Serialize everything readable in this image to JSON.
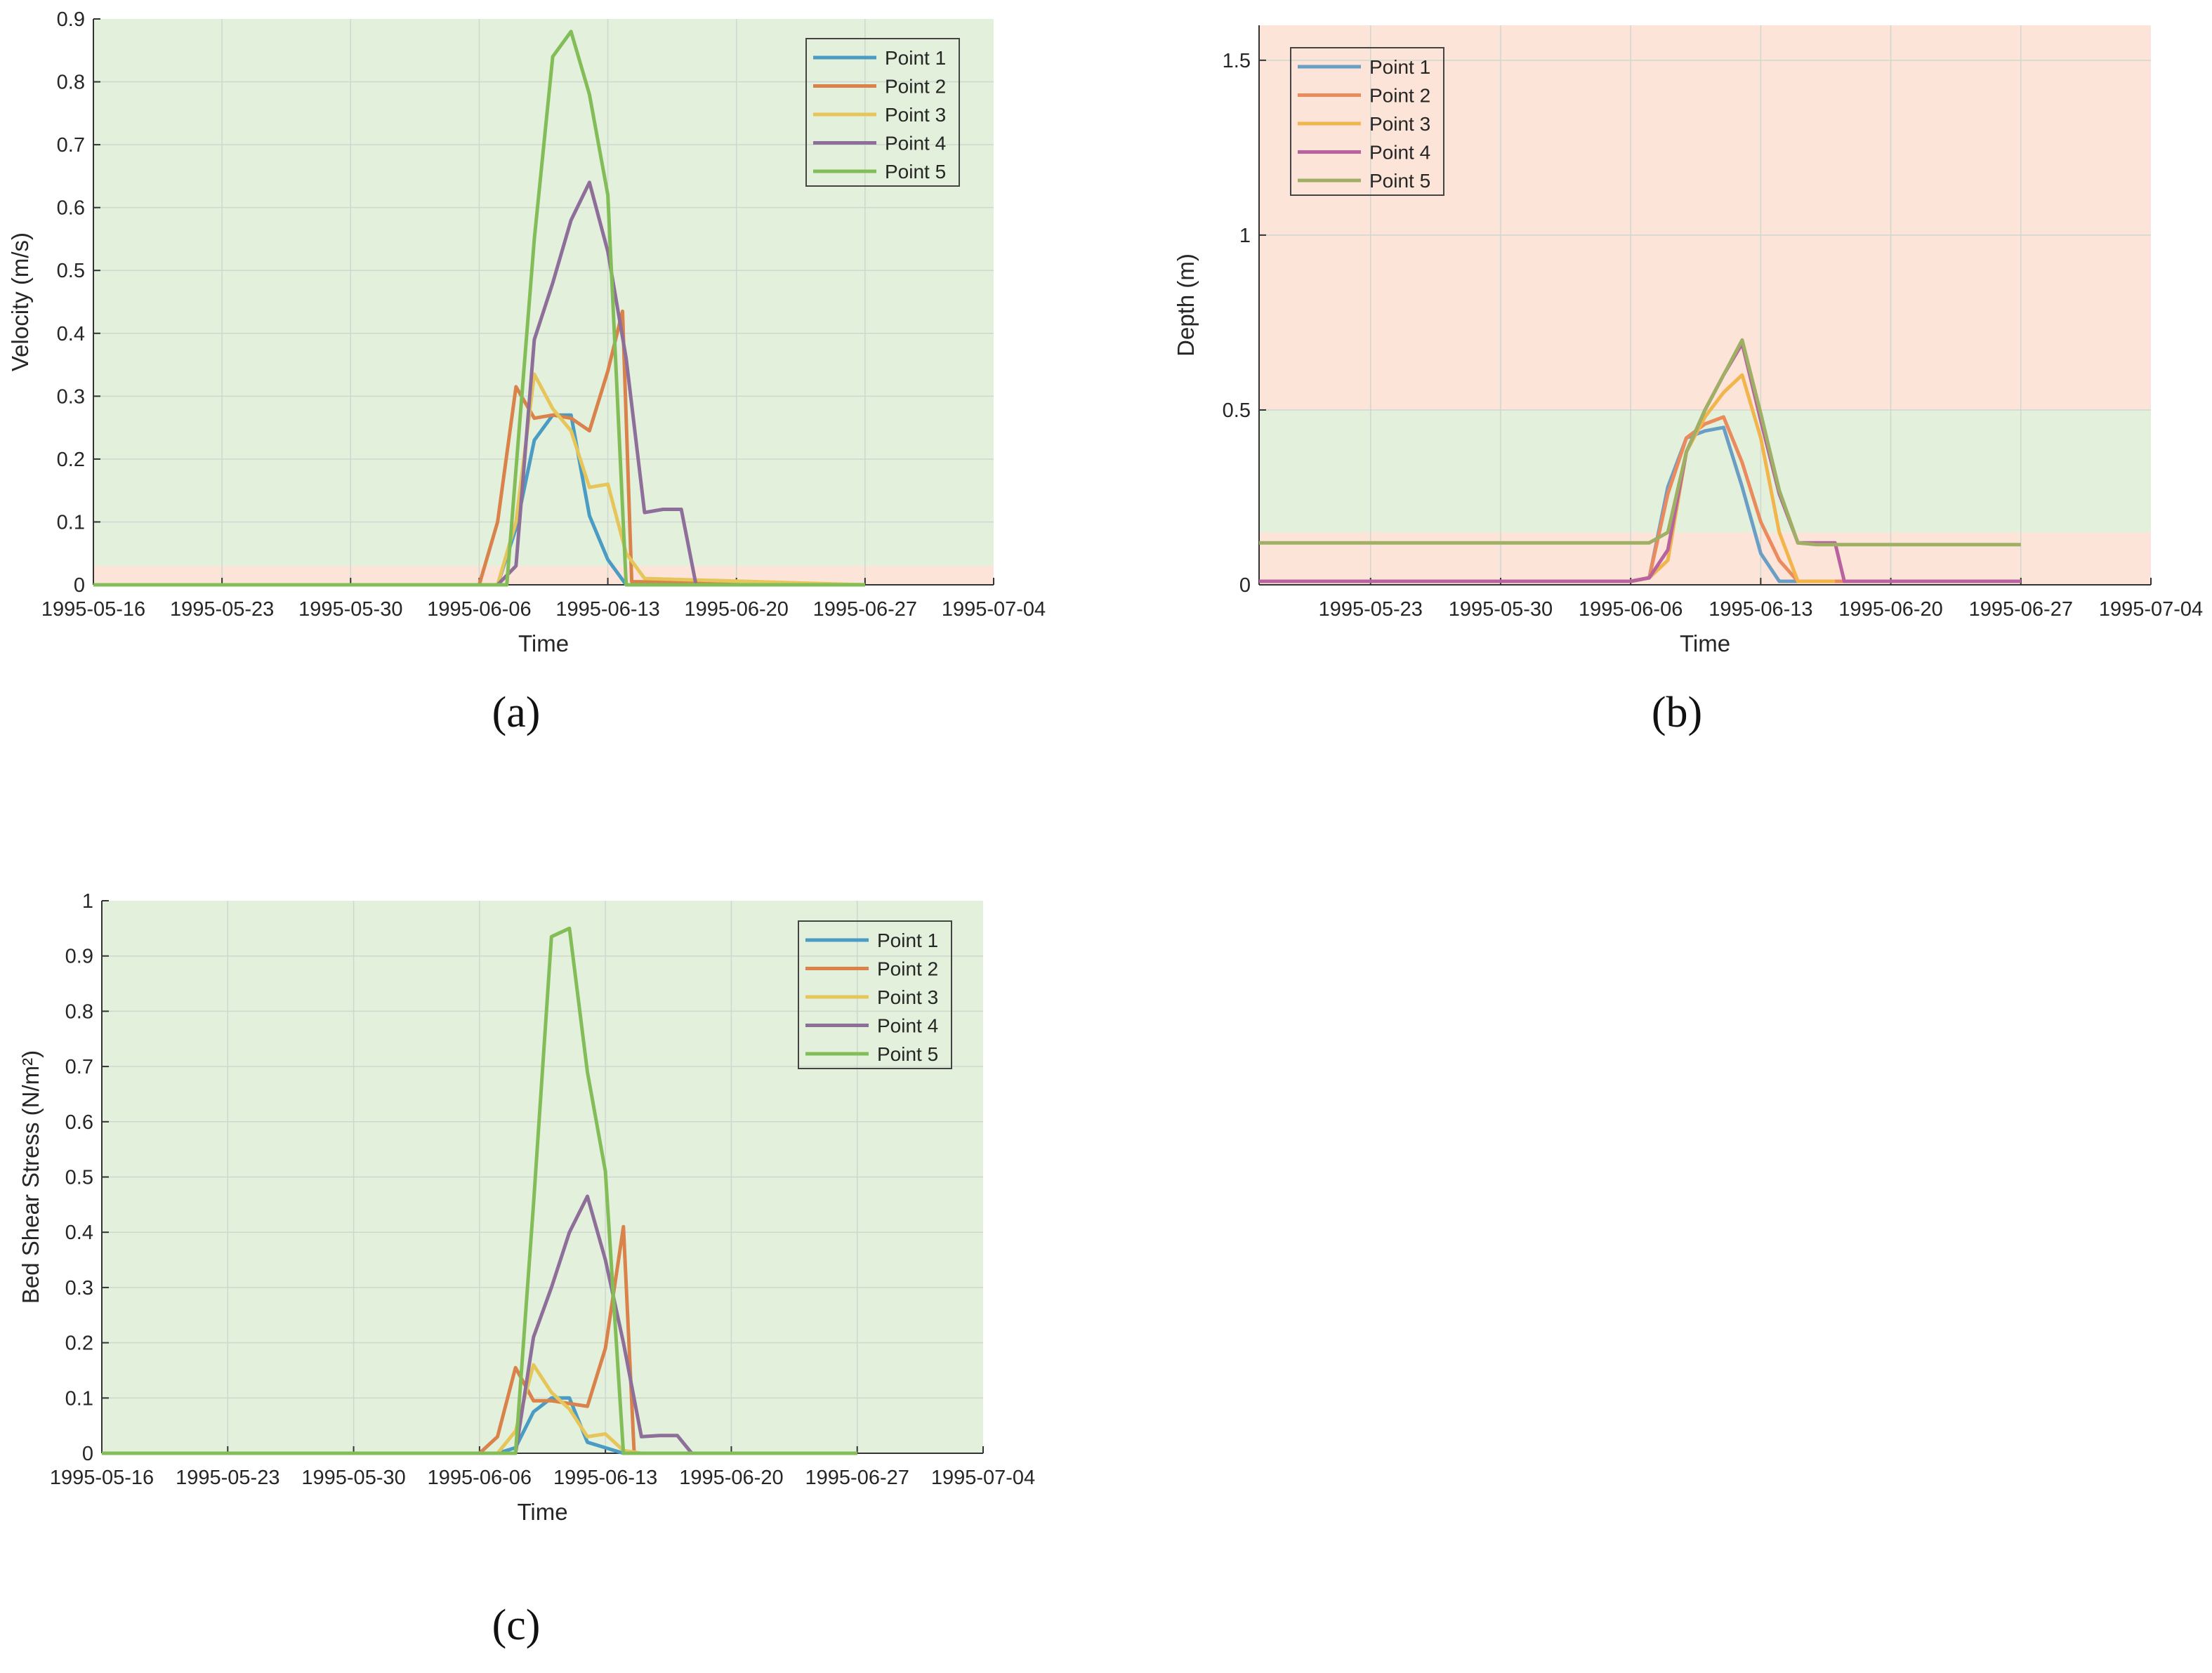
{
  "colors": {
    "safe_zone": "#e3f0dc",
    "risk_zone": "#fce4d8",
    "point1": "#4a9cc4",
    "point2": "#d9824a",
    "point3": "#e6c65a",
    "point4": "#8e6f9a",
    "point5": "#83bd58",
    "point4_b": "#b8639f",
    "point5_b": "#9fb065",
    "point3_b": "#f2b54c",
    "point2_b": "#ea8a5d",
    "point1_b": "#6a9ec4"
  },
  "chart_data": [
    {
      "id": "a",
      "type": "line",
      "caption": "(a)",
      "xlabel": "Time",
      "ylabel": "Velocity (m/s)",
      "x_ticks": [
        "1995-05-16",
        "1995-05-23",
        "1995-05-30",
        "1995-06-06",
        "1995-06-13",
        "1995-06-20",
        "1995-06-27",
        "1995-07-04"
      ],
      "y_ticks": [
        "0",
        "0.1",
        "0.2",
        "0.3",
        "0.4",
        "0.5",
        "0.6",
        "0.7",
        "0.8",
        "0.9"
      ],
      "xlim": [
        "1995-05-16",
        "1995-07-04"
      ],
      "ylim": [
        0,
        0.9
      ],
      "grid": true,
      "legend_position": "top-right",
      "bands": [
        {
          "from": 0,
          "to": 0.03,
          "zone": "risk"
        },
        {
          "from": 0.03,
          "to": 0.9,
          "zone": "safe"
        }
      ],
      "series": [
        {
          "name": "Point 1",
          "points": [
            [
              "1995-05-16",
              0
            ],
            [
              "1995-06-07",
              0
            ],
            [
              "1995-06-08",
              0.09
            ],
            [
              "1995-06-09",
              0.23
            ],
            [
              "1995-06-10",
              0.27
            ],
            [
              "1995-06-11",
              0.27
            ],
            [
              "1995-06-12",
              0.11
            ],
            [
              "1995-06-13",
              0.04
            ],
            [
              "1995-06-14",
              0
            ],
            [
              "1995-06-27",
              0
            ]
          ]
        },
        {
          "name": "Point 2",
          "points": [
            [
              "1995-05-16",
              0
            ],
            [
              "1995-06-06",
              0
            ],
            [
              "1995-06-07",
              0.1
            ],
            [
              "1995-06-08",
              0.315
            ],
            [
              "1995-06-09",
              0.265
            ],
            [
              "1995-06-10",
              0.27
            ],
            [
              "1995-06-11",
              0.265
            ],
            [
              "1995-06-12",
              0.245
            ],
            [
              "1995-06-13",
              0.34
            ],
            [
              "1995-06-13.8",
              0.435
            ],
            [
              "1995-06-14.3",
              0.005
            ],
            [
              "1995-06-27",
              0.0
            ]
          ]
        },
        {
          "name": "Point 3",
          "points": [
            [
              "1995-05-16",
              0
            ],
            [
              "1995-06-07",
              0
            ],
            [
              "1995-06-08",
              0.1
            ],
            [
              "1995-06-09",
              0.335
            ],
            [
              "1995-06-10",
              0.28
            ],
            [
              "1995-06-11",
              0.245
            ],
            [
              "1995-06-12",
              0.155
            ],
            [
              "1995-06-13",
              0.16
            ],
            [
              "1995-06-14",
              0.05
            ],
            [
              "1995-06-15",
              0.01
            ],
            [
              "1995-06-27",
              0
            ]
          ]
        },
        {
          "name": "Point 4",
          "points": [
            [
              "1995-05-16",
              0
            ],
            [
              "1995-06-07",
              0
            ],
            [
              "1995-06-08",
              0.03
            ],
            [
              "1995-06-09",
              0.39
            ],
            [
              "1995-06-10",
              0.48
            ],
            [
              "1995-06-11",
              0.58
            ],
            [
              "1995-06-12",
              0.64
            ],
            [
              "1995-06-13",
              0.53
            ],
            [
              "1995-06-14",
              0.36
            ],
            [
              "1995-06-15",
              0.115
            ],
            [
              "1995-06-16",
              0.12
            ],
            [
              "1995-06-17",
              0.12
            ],
            [
              "1995-06-17.8",
              0
            ],
            [
              "1995-06-27",
              0
            ]
          ]
        },
        {
          "name": "Point 5",
          "points": [
            [
              "1995-05-16",
              0
            ],
            [
              "1995-06-07.5",
              0
            ],
            [
              "1995-06-09",
              0.55
            ],
            [
              "1995-06-10",
              0.84
            ],
            [
              "1995-06-11",
              0.88
            ],
            [
              "1995-06-12",
              0.78
            ],
            [
              "1995-06-13",
              0.62
            ],
            [
              "1995-06-14",
              0
            ],
            [
              "1995-06-27",
              0
            ]
          ]
        }
      ]
    },
    {
      "id": "b",
      "type": "line",
      "caption": "(b)",
      "xlabel": "Time",
      "ylabel": "Depth (m)",
      "x_ticks": [
        "1995-05-23",
        "1995-05-30",
        "1995-06-06",
        "1995-06-13",
        "1995-06-20",
        "1995-06-27",
        "1995-07-04"
      ],
      "y_ticks": [
        "0",
        "0.5",
        "1",
        "1.5"
      ],
      "xlim": [
        "1995-05-17",
        "1995-07-04"
      ],
      "ylim": [
        0,
        1.6
      ],
      "grid": true,
      "legend_position": "top-left",
      "bands": [
        {
          "from": 0,
          "to": 0.15,
          "zone": "risk"
        },
        {
          "from": 0.15,
          "to": 0.5,
          "zone": "safe"
        },
        {
          "from": 0.5,
          "to": 1.6,
          "zone": "risk"
        }
      ],
      "series": [
        {
          "name": "Point 1",
          "points": [
            [
              "1995-05-17",
              0.01
            ],
            [
              "1995-06-06",
              0.01
            ],
            [
              "1995-06-07",
              0.02
            ],
            [
              "1995-06-08",
              0.28
            ],
            [
              "1995-06-09",
              0.42
            ],
            [
              "1995-06-10",
              0.44
            ],
            [
              "1995-06-11",
              0.45
            ],
            [
              "1995-06-12",
              0.28
            ],
            [
              "1995-06-13",
              0.09
            ],
            [
              "1995-06-14",
              0.01
            ],
            [
              "1995-06-27",
              0.01
            ]
          ]
        },
        {
          "name": "Point 2",
          "points": [
            [
              "1995-05-17",
              0.01
            ],
            [
              "1995-06-06",
              0.01
            ],
            [
              "1995-06-07",
              0.02
            ],
            [
              "1995-06-08",
              0.26
            ],
            [
              "1995-06-09",
              0.42
            ],
            [
              "1995-06-10",
              0.46
            ],
            [
              "1995-06-11",
              0.48
            ],
            [
              "1995-06-12",
              0.35
            ],
            [
              "1995-06-13",
              0.18
            ],
            [
              "1995-06-14",
              0.07
            ],
            [
              "1995-06-15",
              0.01
            ],
            [
              "1995-06-27",
              0.01
            ]
          ]
        },
        {
          "name": "Point 3",
          "points": [
            [
              "1995-05-17",
              0.01
            ],
            [
              "1995-06-06",
              0.01
            ],
            [
              "1995-06-07",
              0.02
            ],
            [
              "1995-06-08",
              0.07
            ],
            [
              "1995-06-09",
              0.38
            ],
            [
              "1995-06-10",
              0.48
            ],
            [
              "1995-06-11",
              0.55
            ],
            [
              "1995-06-12",
              0.6
            ],
            [
              "1995-06-13",
              0.42
            ],
            [
              "1995-06-14",
              0.15
            ],
            [
              "1995-06-15",
              0.01
            ],
            [
              "1995-06-16",
              0.01
            ],
            [
              "1995-06-17",
              0.01
            ]
          ]
        },
        {
          "name": "Point 4",
          "points": [
            [
              "1995-05-17",
              0.01
            ],
            [
              "1995-06-06",
              0.01
            ],
            [
              "1995-06-07",
              0.02
            ],
            [
              "1995-06-08",
              0.1
            ],
            [
              "1995-06-09",
              0.38
            ],
            [
              "1995-06-10",
              0.5
            ],
            [
              "1995-06-11",
              0.6
            ],
            [
              "1995-06-12",
              0.69
            ],
            [
              "1995-06-13",
              0.47
            ],
            [
              "1995-06-14",
              0.26
            ],
            [
              "1995-06-15",
              0.12
            ],
            [
              "1995-06-16",
              0.12
            ],
            [
              "1995-06-17",
              0.12
            ],
            [
              "1995-06-17.5",
              0.01
            ],
            [
              "1995-06-27",
              0.01
            ]
          ]
        },
        {
          "name": "Point 5",
          "points": [
            [
              "1995-05-17",
              0.12
            ],
            [
              "1995-06-07",
              0.12
            ],
            [
              "1995-06-08",
              0.15
            ],
            [
              "1995-06-09",
              0.38
            ],
            [
              "1995-06-10",
              0.5
            ],
            [
              "1995-06-11",
              0.6
            ],
            [
              "1995-06-12",
              0.7
            ],
            [
              "1995-06-13",
              0.49
            ],
            [
              "1995-06-14",
              0.27
            ],
            [
              "1995-06-15",
              0.12
            ],
            [
              "1995-06-16",
              0.115
            ],
            [
              "1995-06-20",
              0.115
            ],
            [
              "1995-06-27",
              0.115
            ]
          ]
        }
      ]
    },
    {
      "id": "c",
      "type": "line",
      "caption": "(c)",
      "xlabel": "Time",
      "ylabel": "Bed Shear Stress (N/m²)",
      "x_ticks": [
        "1995-05-16",
        "1995-05-23",
        "1995-05-30",
        "1995-06-06",
        "1995-06-13",
        "1995-06-20",
        "1995-06-27",
        "1995-07-04"
      ],
      "y_ticks": [
        "0",
        "0.1",
        "0.2",
        "0.3",
        "0.4",
        "0.5",
        "0.6",
        "0.7",
        "0.8",
        "0.9",
        "1"
      ],
      "xlim": [
        "1995-05-16",
        "1995-07-04"
      ],
      "ylim": [
        0,
        1.0
      ],
      "grid": true,
      "legend_position": "top-right",
      "bands": [
        {
          "from": 0,
          "to": 1.0,
          "zone": "safe"
        }
      ],
      "series": [
        {
          "name": "Point 1",
          "points": [
            [
              "1995-05-16",
              0
            ],
            [
              "1995-06-07",
              0
            ],
            [
              "1995-06-08",
              0.01
            ],
            [
              "1995-06-09",
              0.075
            ],
            [
              "1995-06-10",
              0.1
            ],
            [
              "1995-06-11",
              0.1
            ],
            [
              "1995-06-12",
              0.02
            ],
            [
              "1995-06-13",
              0.01
            ],
            [
              "1995-06-14",
              0
            ],
            [
              "1995-06-27",
              0
            ]
          ]
        },
        {
          "name": "Point 2",
          "points": [
            [
              "1995-05-16",
              0
            ],
            [
              "1995-06-06",
              0
            ],
            [
              "1995-06-07",
              0.03
            ],
            [
              "1995-06-08",
              0.155
            ],
            [
              "1995-06-09",
              0.095
            ],
            [
              "1995-06-10",
              0.095
            ],
            [
              "1995-06-11",
              0.09
            ],
            [
              "1995-06-12",
              0.085
            ],
            [
              "1995-06-13",
              0.19
            ],
            [
              "1995-06-14",
              0.41
            ],
            [
              "1995-06-14.6",
              0
            ],
            [
              "1995-06-27",
              0
            ]
          ]
        },
        {
          "name": "Point 3",
          "points": [
            [
              "1995-05-16",
              0
            ],
            [
              "1995-06-07",
              0
            ],
            [
              "1995-06-08",
              0.04
            ],
            [
              "1995-06-09",
              0.16
            ],
            [
              "1995-06-10",
              0.11
            ],
            [
              "1995-06-11",
              0.08
            ],
            [
              "1995-06-12",
              0.03
            ],
            [
              "1995-06-13",
              0.035
            ],
            [
              "1995-06-14",
              0.005
            ],
            [
              "1995-06-15",
              0
            ],
            [
              "1995-06-27",
              0
            ]
          ]
        },
        {
          "name": "Point 4",
          "points": [
            [
              "1995-05-16",
              0
            ],
            [
              "1995-06-08",
              0
            ],
            [
              "1995-06-09",
              0.21
            ],
            [
              "1995-06-10",
              0.3
            ],
            [
              "1995-06-11",
              0.4
            ],
            [
              "1995-06-12",
              0.465
            ],
            [
              "1995-06-13",
              0.35
            ],
            [
              "1995-06-14",
              0.2
            ],
            [
              "1995-06-15",
              0.03
            ],
            [
              "1995-06-16",
              0.032
            ],
            [
              "1995-06-17",
              0.032
            ],
            [
              "1995-06-17.8",
              0
            ],
            [
              "1995-06-27",
              0
            ]
          ]
        },
        {
          "name": "Point 5",
          "points": [
            [
              "1995-05-16",
              0
            ],
            [
              "1995-06-08",
              0
            ],
            [
              "1995-06-09",
              0.45
            ],
            [
              "1995-06-10",
              0.935
            ],
            [
              "1995-06-11",
              0.95
            ],
            [
              "1995-06-12",
              0.69
            ],
            [
              "1995-06-13",
              0.51
            ],
            [
              "1995-06-14",
              0
            ],
            [
              "1995-06-27",
              0
            ]
          ]
        }
      ]
    }
  ]
}
